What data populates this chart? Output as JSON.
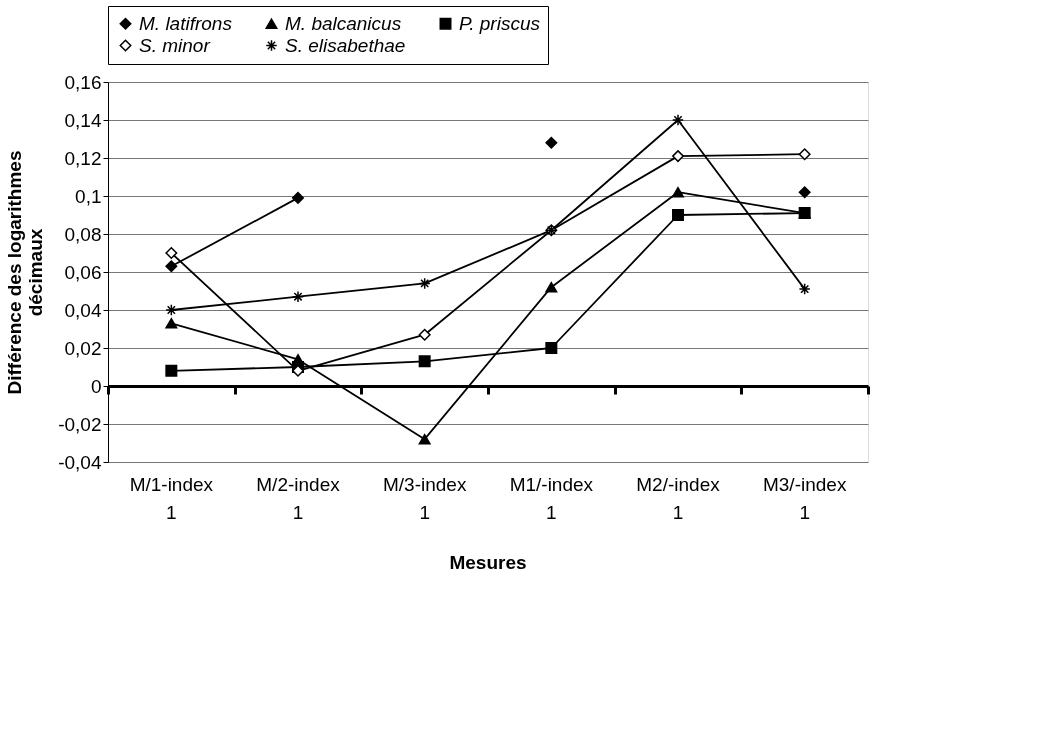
{
  "chart_data": {
    "type": "line",
    "xlabel": "Mesures",
    "ylabel": "Différence des logarithmes décimaux",
    "categories": [
      "M/1-index 1",
      "M/2-index 1",
      "M/3-index 1",
      "M1/-index 1",
      "M2/-index 1",
      "M3/-index 1"
    ],
    "series": [
      {
        "name": "M. latifrons",
        "color": "#000000",
        "marker": "diamond",
        "values": [
          0.063,
          0.099,
          null,
          0.128,
          null,
          0.102
        ]
      },
      {
        "name": "M. balcanicus",
        "color": "#000000",
        "marker": "triangle",
        "values": [
          0.033,
          0.014,
          -0.028,
          0.052,
          0.102,
          0.091
        ]
      },
      {
        "name": "P. priscus",
        "color": "#000000",
        "marker": "square",
        "values": [
          0.008,
          0.01,
          0.013,
          0.02,
          0.09,
          0.091
        ]
      },
      {
        "name": "S. minor",
        "color": "#000000",
        "marker": "diamond",
        "values": [
          0.07,
          0.008,
          0.027,
          0.082,
          0.121,
          0.122
        ]
      },
      {
        "name": "S. elisabethae",
        "color": "#000000",
        "marker": "cross",
        "values": [
          0.04,
          0.047,
          0.054,
          0.082,
          0.14,
          0.051
        ]
      }
    ],
    "ylim": [
      -0.04,
      0.16
    ],
    "yticks": [
      {
        "value": -0.04,
        "label": "-0,04"
      },
      {
        "value": -0.02,
        "label": "-0,02"
      },
      0,
      {
        "value": 0.02,
        "label": "0,02"
      },
      {
        "value": 0.04,
        "label": "0,04"
      },
      {
        "value": 0.06,
        "label": "0,06"
      },
      {
        "value": 0.08,
        "label": "0,08"
      },
      {
        "value": 0.1,
        "label": "0,1"
      },
      {
        "value": 0.12,
        "label": "0,12"
      },
      {
        "value": 0.14,
        "label": "0,14"
      },
      {
        "value": 0.16,
        "label": "0,16"
      }
    ],
    "grid": "y",
    "legend": "top",
    "line_style": "solid"
  }
}
